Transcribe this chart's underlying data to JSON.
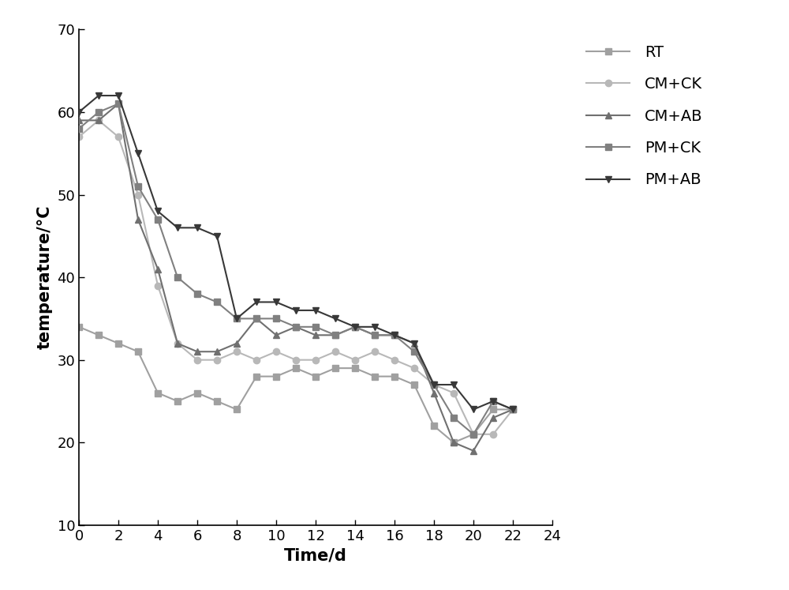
{
  "series": {
    "RT": {
      "x": [
        0,
        1,
        2,
        3,
        4,
        5,
        6,
        7,
        8,
        9,
        10,
        11,
        12,
        13,
        14,
        15,
        16,
        17,
        18,
        19,
        20,
        21,
        22
      ],
      "y": [
        34,
        33,
        32,
        31,
        26,
        25,
        26,
        25,
        24,
        28,
        28,
        29,
        28,
        29,
        29,
        28,
        28,
        27,
        22,
        20,
        21,
        24,
        24
      ],
      "color": "#a0a0a0",
      "marker": "s",
      "markersize": 6,
      "linewidth": 1.5,
      "zorder": 2
    },
    "CM+CK": {
      "x": [
        0,
        1,
        2,
        3,
        4,
        5,
        6,
        7,
        8,
        9,
        10,
        11,
        12,
        13,
        14,
        15,
        16,
        17,
        18,
        19,
        20,
        21,
        22
      ],
      "y": [
        57,
        59,
        57,
        50,
        39,
        32,
        30,
        30,
        31,
        30,
        31,
        30,
        30,
        31,
        30,
        31,
        30,
        29,
        27,
        26,
        21,
        21,
        24
      ],
      "color": "#b8b8b8",
      "marker": "o",
      "markersize": 6,
      "linewidth": 1.5,
      "zorder": 2
    },
    "CM+AB": {
      "x": [
        0,
        1,
        2,
        3,
        4,
        5,
        6,
        7,
        8,
        9,
        10,
        11,
        12,
        13,
        14,
        15,
        16,
        17,
        18,
        19,
        20,
        21,
        22
      ],
      "y": [
        59,
        59,
        61,
        47,
        41,
        32,
        31,
        31,
        32,
        35,
        33,
        34,
        33,
        33,
        34,
        33,
        33,
        32,
        26,
        20,
        19,
        23,
        24
      ],
      "color": "#707070",
      "marker": "^",
      "markersize": 6,
      "linewidth": 1.5,
      "zorder": 3
    },
    "PM+CK": {
      "x": [
        0,
        1,
        2,
        3,
        4,
        5,
        6,
        7,
        8,
        9,
        10,
        11,
        12,
        13,
        14,
        15,
        16,
        17,
        18,
        19,
        20,
        21,
        22
      ],
      "y": [
        58,
        60,
        61,
        51,
        47,
        40,
        38,
        37,
        35,
        35,
        35,
        34,
        34,
        33,
        34,
        33,
        33,
        31,
        27,
        23,
        21,
        25,
        24
      ],
      "color": "#808080",
      "marker": "s",
      "markersize": 6,
      "linewidth": 1.5,
      "zorder": 3
    },
    "PM+AB": {
      "x": [
        0,
        1,
        2,
        3,
        4,
        5,
        6,
        7,
        8,
        9,
        10,
        11,
        12,
        13,
        14,
        15,
        16,
        17,
        18,
        19,
        20,
        21,
        22
      ],
      "y": [
        60,
        62,
        62,
        55,
        48,
        46,
        46,
        45,
        35,
        37,
        37,
        36,
        36,
        35,
        34,
        34,
        33,
        32,
        27,
        27,
        24,
        25,
        24
      ],
      "color": "#383838",
      "marker": "v",
      "markersize": 6,
      "linewidth": 1.5,
      "zorder": 4
    }
  },
  "xlabel": "Time/d",
  "ylabel": "temperature/°C",
  "xlim": [
    0,
    24
  ],
  "ylim": [
    10,
    70
  ],
  "xticks": [
    0,
    2,
    4,
    6,
    8,
    10,
    12,
    14,
    16,
    18,
    20,
    22,
    24
  ],
  "yticks": [
    10,
    20,
    30,
    40,
    50,
    60,
    70
  ],
  "legend_order": [
    "RT",
    "CM+CK",
    "CM+AB",
    "PM+CK",
    "PM+AB"
  ],
  "background_color": "#ffffff",
  "label_fontsize": 15,
  "tick_fontsize": 13,
  "legend_fontsize": 14
}
